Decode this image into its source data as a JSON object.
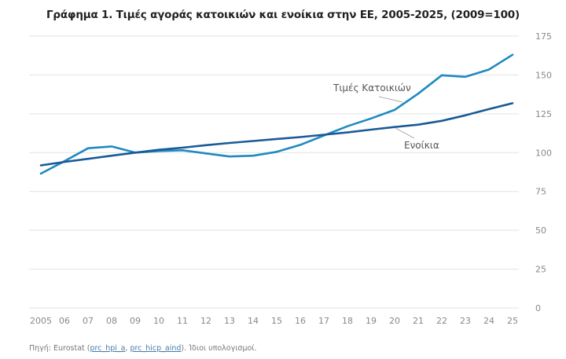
{
  "chart_data": {
    "type": "line",
    "title": "Γράφημα 1. Τιμές αγοράς κατοικιών και ενοίκια στην ΕΕ, 2005-2025, (2009=100)",
    "xlabel": "",
    "ylabel": "",
    "x": [
      "2005",
      "06",
      "07",
      "08",
      "09",
      "10",
      "11",
      "12",
      "13",
      "14",
      "15",
      "16",
      "17",
      "18",
      "19",
      "20",
      "21",
      "22",
      "23",
      "24",
      "25"
    ],
    "ylim": [
      0,
      175
    ],
    "yticks": [
      0,
      25,
      50,
      75,
      100,
      125,
      150,
      175
    ],
    "y_axis_side": "right",
    "grid": true,
    "series": [
      {
        "name": "Τιμές Κατοικιών",
        "color": "#1f8ac0",
        "values": [
          86.5,
          94.5,
          102.8,
          104,
          100,
          101,
          101.5,
          99.5,
          97.5,
          98,
          100.5,
          105,
          111,
          117,
          122,
          127.5,
          138,
          149.8,
          148.8,
          153.5,
          163
        ]
      },
      {
        "name": "Ενοίκια",
        "color": "#1a5a96",
        "values": [
          91.8,
          94,
          96,
          98,
          100,
          101.8,
          103.2,
          104.8,
          106.2,
          107.5,
          108.8,
          110,
          111.5,
          113,
          114.8,
          116.5,
          118,
          120.5,
          124,
          128,
          131.8
        ]
      }
    ],
    "annotations": [
      {
        "text": "Τιμές Κατοικιών",
        "series": "Τιμές Κατοικιών"
      },
      {
        "text": "Ενοίκια",
        "series": "Ενοίκια"
      }
    ],
    "source": {
      "prefix": "Πηγή: Eurostat (",
      "link1": "prc_hpi_a",
      "sep": ", ",
      "link2": "prc_hicp_aind",
      "suffix": "). Ίδιοι υπολογισμοί."
    }
  }
}
